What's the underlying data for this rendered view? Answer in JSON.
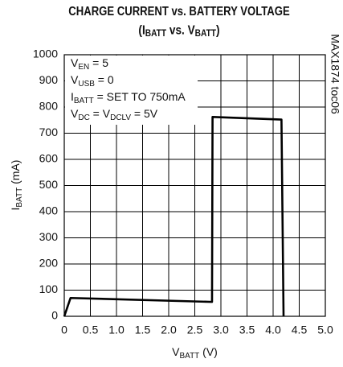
{
  "chart_data": {
    "type": "line",
    "title": "CHARGE CURRENT vs. BATTERY VOLTAGE",
    "subtitle": [
      "(I",
      "BATT",
      " vs. V",
      "BATT",
      ")"
    ],
    "x_label": [
      "V",
      "BATT",
      " (V)"
    ],
    "y_label": [
      "I",
      "BATT",
      " (mA)"
    ],
    "annotations": [
      [
        "V",
        "EN",
        " = 5"
      ],
      [
        "V",
        "USB",
        " = 0"
      ],
      [
        "I",
        "BATT",
        " = SET TO 750mA"
      ],
      [
        "V",
        "DC",
        " = V",
        "DCLV",
        " = 5V"
      ]
    ],
    "side_note": "MAX1874 toc06",
    "x": [
      0,
      0.12,
      2.83,
      2.84,
      4.16,
      4.2
    ],
    "series": [
      {
        "color": "#000000",
        "values": [
          0,
          70,
          55,
          762,
          752,
          0
        ]
      }
    ],
    "xlim": [
      0,
      5
    ],
    "ylim": [
      0,
      1000
    ],
    "xticks": [
      0,
      0.5,
      {
        "value": 1,
        "label": "1.0"
      },
      1.5,
      {
        "value": 2,
        "label": "2.0"
      },
      2.5,
      {
        "value": 3,
        "label": "3.0"
      },
      3.5,
      {
        "value": 4,
        "label": "4.0"
      },
      4.5,
      {
        "value": 5,
        "label": "5.0"
      }
    ],
    "yticks": [
      0,
      100,
      200,
      300,
      400,
      500,
      600,
      700,
      800,
      900,
      1000
    ],
    "grid": true
  }
}
